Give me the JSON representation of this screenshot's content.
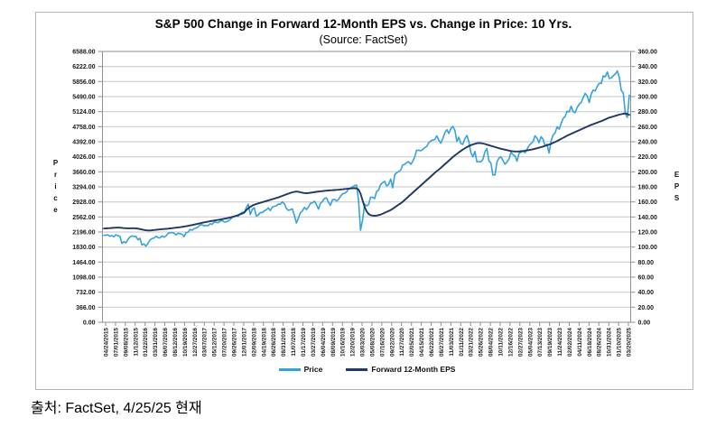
{
  "caption": "출처: FactSet, 4/25/25 현재",
  "chart_data": {
    "type": "line",
    "title": "S&P 500 Change in Forward 12-Month EPS vs. Change in Price: 10 Yrs.",
    "subtitle": "(Source: FactSet)",
    "grid": true,
    "legend_position": "bottom",
    "left_axis": {
      "label": "Price",
      "min": 0,
      "max": 6588,
      "step": 366,
      "ticks": [
        "6588.00",
        "6222.00",
        "5856.00",
        "5490.00",
        "5124.00",
        "4758.00",
        "4392.00",
        "4026.00",
        "3660.00",
        "3294.00",
        "2928.00",
        "2562.00",
        "2196.00",
        "1830.00",
        "1464.00",
        "1098.00",
        "732.00",
        "366.00",
        "0.00"
      ]
    },
    "right_axis": {
      "label": "EPS",
      "min": 0,
      "max": 360,
      "step": 20,
      "ticks": [
        "360.00",
        "340.00",
        "320.00",
        "300.00",
        "280.00",
        "260.00",
        "240.00",
        "220.00",
        "200.00",
        "180.00",
        "160.00",
        "140.00",
        "120.00",
        "100.00",
        "80.00",
        "60.00",
        "40.00",
        "20.00",
        "0.00"
      ]
    },
    "x_ticks": [
      "04/24/2015",
      "07/01/2015",
      "09/08/2015",
      "11/12/2015",
      "01/22/2016",
      "03/31/2016",
      "06/07/2016",
      "08/12/2016",
      "10/19/2016",
      "12/27/2016",
      "03/07/2017",
      "05/12/2017",
      "07/20/2017",
      "09/26/2017",
      "12/01/2017",
      "02/09/2018",
      "04/19/2018",
      "06/26/2018",
      "08/31/2018",
      "11/07/2018",
      "01/17/2019",
      "03/27/2019",
      "06/04/2019",
      "08/09/2019",
      "10/16/2019",
      "12/20/2019",
      "03/03/2020",
      "05/08/2020",
      "07/16/2020",
      "09/22/2020",
      "11/27/2020",
      "02/05/2021",
      "04/15/2021",
      "06/22/2021",
      "08/27/2021",
      "11/03/2021",
      "01/11/2022",
      "03/21/2022",
      "05/26/2022",
      "08/04/2022",
      "10/11/2022",
      "12/16/2022",
      "02/27/2023",
      "05/04/2023",
      "07/13/2023",
      "09/19/2023",
      "11/24/2023",
      "02/02/2024",
      "04/11/2024",
      "06/18/2024",
      "08/26/2024",
      "10/31/2024",
      "01/10/2025",
      "03/20/2025"
    ],
    "legend": [
      {
        "name": "Price",
        "color": "#36A2DB"
      },
      {
        "name": "Forward 12-Month EPS",
        "color": "#1F3864"
      }
    ],
    "series": [
      {
        "name": "Price",
        "axis": "left",
        "color": "#36A2DB",
        "values": [
          2118,
          2116,
          2126,
          2093,
          2110,
          2077,
          2127,
          2104,
          2092,
          1920,
          1961,
          1931,
          2015,
          2075,
          2099,
          2089,
          2092,
          2006,
          2044,
          1880,
          1906,
          1853,
          1918,
          1999,
          2036,
          2048,
          2092,
          2057,
          2052,
          2099,
          2071,
          2103,
          2162,
          2174,
          2184,
          2169,
          2128,
          2165,
          2154,
          2141,
          2085,
          2182,
          2192,
          2258,
          2239,
          2275,
          2295,
          2316,
          2367,
          2373,
          2344,
          2355,
          2349,
          2399,
          2382,
          2439,
          2433,
          2423,
          2459,
          2472,
          2441,
          2443,
          2461,
          2502,
          2549,
          2575,
          2588,
          2579,
          2642,
          2676,
          2674,
          2786,
          2873,
          2620,
          2747,
          2787,
          2588,
          2604,
          2670,
          2663,
          2713,
          2735,
          2780,
          2718,
          2801,
          2819,
          2833,
          2875,
          2872,
          2930,
          2886,
          2768,
          2723,
          2736,
          2760,
          2600,
          2416,
          2532,
          2665,
          2708,
          2793,
          2743,
          2801,
          2893,
          2905,
          2946,
          2860,
          2752,
          2887,
          2942,
          3014,
          3026,
          2919,
          2847,
          2979,
          2992,
          2952,
          2986,
          3067,
          3120,
          3141,
          3169,
          3240,
          3265,
          3295,
          3328,
          3338,
          2972,
          2237,
          2489,
          2875,
          2831,
          2864,
          3044,
          3041,
          3009,
          3185,
          3216,
          3351,
          3397,
          3427,
          3319,
          3348,
          3484,
          3270,
          3585,
          3638,
          3663,
          3703,
          3825,
          3841,
          3887,
          3907,
          3842,
          3913,
          4020,
          4185,
          4181,
          4174,
          4204,
          4247,
          4281,
          4370,
          4412,
          4437,
          4442,
          4535,
          4433,
          4357,
          4471,
          4605,
          4683,
          4595,
          4712,
          4766,
          4677,
          4398,
          4501,
          4349,
          4329,
          4463,
          4546,
          4393,
          4132,
          4024,
          4158,
          3901,
          3912,
          3899,
          3962,
          4145,
          4228,
          3924,
          3873,
          3586,
          3583,
          3901,
          3993,
          4026,
          3934,
          3845,
          3895,
          3973,
          4136,
          4079,
          4046,
          3917,
          4109,
          4138,
          4169,
          4124,
          4205,
          4299,
          4348,
          4399,
          4536,
          4478,
          4370,
          4516,
          4450,
          4288,
          4328,
          4117,
          4415,
          4559,
          4604,
          4755,
          4697,
          4840,
          4959,
          5006,
          5137,
          5117,
          5254,
          5123,
          5100,
          5223,
          5305,
          5347,
          5465,
          5567,
          5505,
          5346,
          5554,
          5648,
          5626,
          5738,
          5815,
          5808,
          5996,
          5969,
          6090,
          5931,
          5942,
          5997,
          6041,
          6115,
          5955,
          5639,
          5581,
          5074,
          4983,
          5525
        ]
      },
      {
        "name": "Forward 12-Month EPS",
        "axis": "right",
        "color": "#1F3864",
        "values": [
          124.6,
          124.8,
          125.0,
          125.2,
          125.4,
          125.6,
          125.8,
          125.9,
          125.8,
          125.5,
          125.2,
          125.0,
          124.9,
          124.9,
          125.0,
          125.0,
          124.8,
          124.4,
          124.0,
          123.4,
          122.8,
          122.3,
          122.0,
          122.1,
          122.3,
          122.6,
          122.9,
          123.2,
          123.5,
          123.8,
          124.0,
          124.2,
          124.5,
          124.8,
          125.1,
          125.5,
          125.8,
          126.1,
          126.4,
          126.8,
          127.2,
          127.7,
          128.2,
          128.8,
          129.3,
          129.9,
          130.5,
          131.1,
          131.7,
          132.3,
          132.8,
          133.3,
          133.8,
          134.3,
          134.8,
          135.3,
          135.7,
          136.1,
          136.6,
          137.1,
          137.6,
          138.1,
          138.7,
          139.3,
          140.0,
          140.8,
          141.6,
          142.5,
          143.5,
          144.6,
          145.8,
          149.0,
          151.5,
          153.5,
          155.0,
          156.2,
          157.2,
          158.0,
          158.8,
          159.6,
          160.4,
          161.2,
          162.0,
          162.8,
          163.6,
          164.4,
          165.2,
          166.0,
          167.0,
          168.0,
          169.0,
          170.0,
          171.0,
          172.0,
          172.8,
          173.4,
          173.8,
          173.5,
          172.8,
          172.2,
          171.8,
          171.6,
          171.8,
          172.2,
          172.6,
          173.0,
          173.4,
          173.8,
          174.1,
          174.4,
          174.7,
          175.0,
          175.2,
          175.4,
          175.6,
          175.8,
          176.0,
          176.2,
          176.5,
          176.8,
          177.1,
          177.4,
          177.7,
          177.9,
          178.1,
          178.2,
          178.0,
          176.5,
          171.0,
          162.0,
          153.5,
          147.5,
          144.0,
          142.5,
          141.8,
          141.5,
          141.8,
          142.4,
          143.2,
          144.2,
          145.4,
          146.6,
          147.8,
          149.2,
          150.8,
          152.6,
          154.6,
          156.4,
          158.2,
          160.2,
          162.6,
          165.0,
          167.4,
          169.8,
          172.2,
          174.6,
          177.0,
          179.4,
          181.8,
          184.2,
          186.6,
          189.0,
          191.4,
          193.8,
          196.2,
          198.6,
          200.8,
          203.0,
          205.2,
          207.6,
          210.0,
          212.4,
          214.8,
          217.2,
          219.6,
          221.8,
          223.8,
          225.8,
          227.8,
          229.6,
          231.2,
          232.8,
          234.2,
          235.4,
          236.4,
          237.3,
          238.0,
          238.3,
          238.1,
          237.6,
          237.0,
          236.2,
          235.4,
          234.6,
          233.8,
          233.0,
          232.2,
          231.4,
          230.7,
          230.0,
          229.4,
          228.8,
          228.2,
          227.7,
          227.3,
          227.1,
          227.0,
          227.1,
          227.4,
          227.7,
          228.1,
          228.5,
          229.0,
          229.5,
          230.1,
          230.7,
          231.4,
          232.1,
          232.9,
          233.7,
          234.5,
          235.4,
          236.3,
          237.3,
          238.5,
          239.7,
          241.0,
          242.4,
          243.8,
          245.2,
          246.6,
          248.0,
          249.2,
          250.4,
          251.6,
          252.8,
          254.0,
          255.2,
          256.4,
          257.6,
          258.8,
          260.0,
          261.2,
          262.4,
          263.4,
          264.4,
          265.4,
          266.4,
          267.4,
          268.4,
          269.6,
          270.8,
          272.0,
          272.8,
          273.6,
          274.4,
          275.2,
          276.0,
          276.6,
          277.2,
          277.6,
          276.8,
          275.8
        ]
      }
    ]
  }
}
